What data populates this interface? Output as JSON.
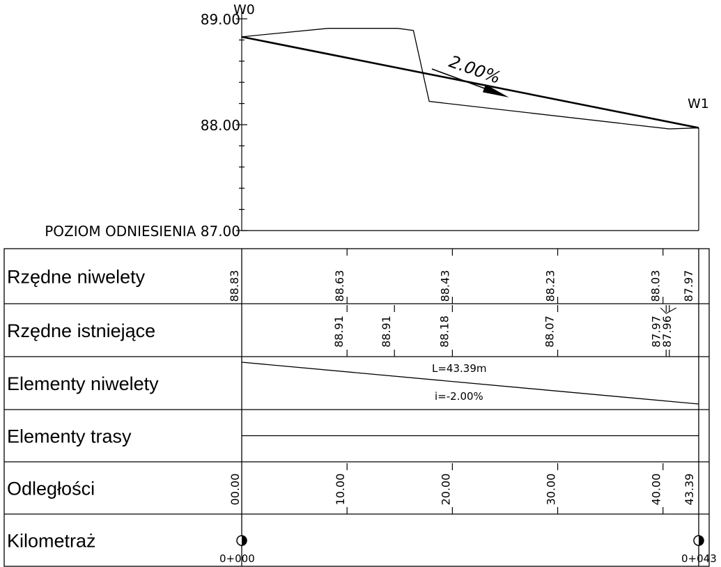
{
  "profile": {
    "elevation_ticks": [
      {
        "label": "89.00",
        "value": 89.0
      },
      {
        "label": "88.00",
        "value": 88.0
      },
      {
        "label": "POZIOM ODNIESIENIA 87.00",
        "value": 87.0
      }
    ],
    "station_range": [
      0,
      43.39
    ],
    "design_line": [
      {
        "station": 0,
        "elev": 88.83
      },
      {
        "station": 43.39,
        "elev": 87.97
      }
    ],
    "existing_ground": [
      {
        "station": 0,
        "elev": 88.83
      },
      {
        "station": 8.2,
        "elev": 88.91
      },
      {
        "station": 14.8,
        "elev": 88.91
      },
      {
        "station": 16.3,
        "elev": 88.89
      },
      {
        "station": 17.8,
        "elev": 88.22
      },
      {
        "station": 40.6,
        "elev": 87.96
      },
      {
        "station": 43.39,
        "elev": 87.97
      }
    ],
    "start_point": "W0",
    "end_point": "W1",
    "grade_label": "2.00%"
  },
  "bands": {
    "rows": [
      {
        "label": "Rzędne niwelety"
      },
      {
        "label": "Rzędne istniejące"
      },
      {
        "label": "Elementy niwelety"
      },
      {
        "label": "Elementy trasy"
      },
      {
        "label": "Odległości"
      },
      {
        "label": "Kilometraż"
      }
    ],
    "rzedne_niwelety": [
      {
        "station": 0,
        "value": "88.83"
      },
      {
        "station": 10,
        "value": "88.63"
      },
      {
        "station": 20,
        "value": "88.43"
      },
      {
        "station": 30,
        "value": "88.23"
      },
      {
        "station": 40,
        "value": "88.03"
      },
      {
        "station": 43.39,
        "value": "87.97"
      }
    ],
    "rzedne_istniejace": [
      {
        "station": 10,
        "value": "88.91"
      },
      {
        "station": 14.5,
        "value": "88.91"
      },
      {
        "station": 20,
        "value": "88.18"
      },
      {
        "station": 30,
        "value": "88.07"
      },
      {
        "station": 40.3,
        "value": "87.97"
      },
      {
        "station": 40.6,
        "value": "87.96"
      }
    ],
    "elementy_niwelety": {
      "length_label": "L=43.39m",
      "grade_label": "i=-2.00%"
    },
    "odleglosci": [
      {
        "station": 0,
        "value": "00.00"
      },
      {
        "station": 10,
        "value": "10.00"
      },
      {
        "station": 20,
        "value": "20.00"
      },
      {
        "station": 30,
        "value": "30.00"
      },
      {
        "station": 40,
        "value": "40.00"
      },
      {
        "station": 43.39,
        "value": "43.39"
      }
    ],
    "kilometraz": [
      {
        "station": 0,
        "label": "0+000"
      },
      {
        "station": 43.39,
        "label": "0+043"
      }
    ]
  }
}
